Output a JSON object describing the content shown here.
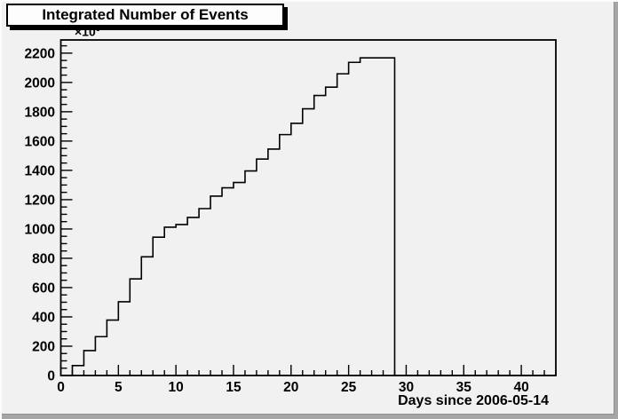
{
  "window": {
    "bg_color": "#f1f1f1",
    "bevel_light": "#fcfcfc",
    "bevel_dark": "#a6a6a6"
  },
  "title_box": {
    "title": "Integrated Number of Events"
  },
  "y_axis": {
    "exponent_base": "×10",
    "exponent_power": "6"
  },
  "x_axis": {
    "title": "Days since 2006-05-14"
  },
  "chart_data": {
    "type": "bar",
    "style": "step-outline-histogram",
    "title": "Integrated Number of Events",
    "xlabel": "Days since 2006-05-14",
    "ylabel": "",
    "y_scale_factor_label": "×10⁶",
    "xlim": [
      0,
      43
    ],
    "ylim": [
      0,
      2290
    ],
    "grid": false,
    "legend": false,
    "line_color": "#000000",
    "x_major_ticks": [
      0,
      5,
      10,
      15,
      20,
      25,
      30,
      35,
      40
    ],
    "x_minor_step": 1,
    "y_major_ticks": [
      0,
      200,
      400,
      600,
      800,
      1000,
      1200,
      1400,
      1600,
      1800,
      2000,
      2200
    ],
    "y_minor_step": 50,
    "bin_width_days": 1,
    "bin_start_day": 0,
    "values_millions": [
      0,
      68,
      170,
      265,
      378,
      503,
      659,
      810,
      944,
      1012,
      1030,
      1079,
      1139,
      1224,
      1281,
      1317,
      1396,
      1477,
      1545,
      1644,
      1721,
      1820,
      1911,
      1968,
      2059,
      2137,
      2168,
      2168,
      2168,
      0,
      0,
      0,
      0,
      0,
      0,
      0,
      0,
      0,
      0,
      0,
      0,
      0,
      0
    ]
  }
}
